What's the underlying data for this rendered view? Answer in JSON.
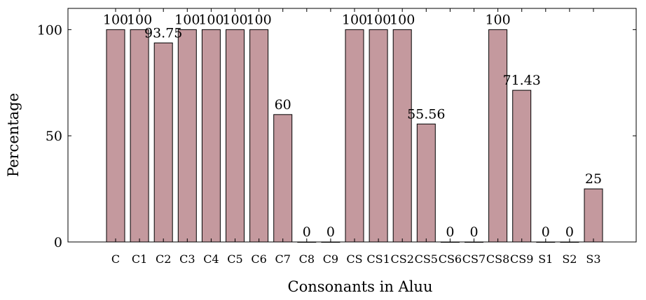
{
  "chart_data": {
    "type": "bar",
    "title": "",
    "xlabel": "Consonants in Aluu",
    "ylabel": "Percentage",
    "categories": [
      "C",
      "C1",
      "C2",
      "C3",
      "C4",
      "C5",
      "C6",
      "C7",
      "C8",
      "C9",
      "CS",
      "CS1",
      "CS2",
      "CS5",
      "CS6",
      "CS7",
      "CS8",
      "CS9",
      "S1",
      "S2",
      "S3"
    ],
    "values": [
      100,
      100,
      93.75,
      100,
      100,
      100,
      100,
      60,
      0,
      0,
      100,
      100,
      100,
      55.56,
      0,
      0,
      100,
      71.43,
      0,
      0,
      25
    ],
    "data_labels": [
      "100",
      "100",
      "93.75",
      "100",
      "100",
      "100",
      "100",
      "60",
      "0",
      "0",
      "100",
      "100",
      "100",
      "55.56",
      "0",
      "0",
      "100",
      "71.43",
      "0",
      "0",
      "25"
    ],
    "yticks": [
      0,
      50,
      100
    ],
    "ylim": [
      0,
      110
    ],
    "grid": false,
    "bar_color": "#c4999e",
    "bar_edge_color": "#000000"
  }
}
